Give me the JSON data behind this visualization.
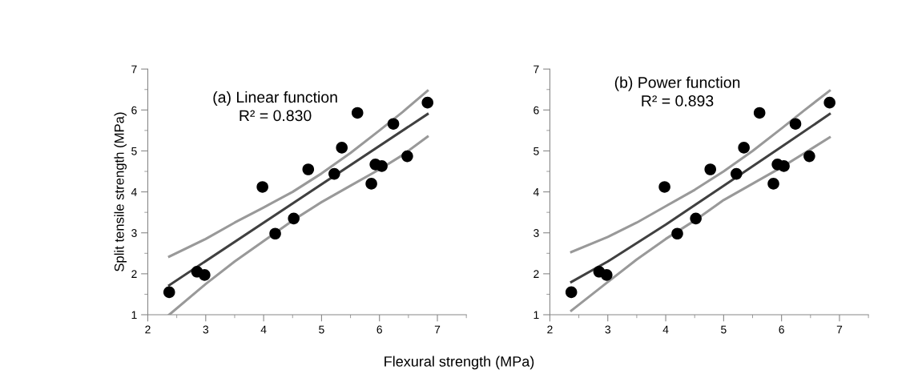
{
  "chart_data": [
    {
      "type": "scatter",
      "ylabel": "Split tensile strength (MPa)",
      "xlabel": "Flexural strength (MPa)",
      "annotations": [
        "(a) Linear function",
        "R² = 0.830"
      ],
      "xlim": [
        2,
        7.5
      ],
      "xticks": [
        2,
        3,
        4,
        5,
        6,
        7
      ],
      "ylim": [
        1,
        7
      ],
      "yticks": [
        1,
        2,
        3,
        4,
        5,
        6,
        7
      ],
      "grid": false,
      "legend": false,
      "series": [
        {
          "type": "line",
          "color": "#999999",
          "x": [
            2.37,
            3,
            3.5,
            4,
            4.5,
            5,
            5.5,
            6,
            6.4,
            6.83
          ],
          "values": [
            2.42,
            2.85,
            3.25,
            3.62,
            4.0,
            4.45,
            4.95,
            5.5,
            5.95,
            6.47
          ]
        },
        {
          "type": "line",
          "color": "#999999",
          "x": [
            2.37,
            3,
            3.5,
            4,
            4.5,
            5,
            5.5,
            6,
            6.4,
            6.83
          ],
          "values": [
            1.0,
            1.75,
            2.3,
            2.8,
            3.3,
            3.75,
            4.15,
            4.55,
            4.9,
            5.35
          ]
        },
        {
          "type": "line",
          "color": "#404040",
          "x": [
            2.37,
            6.83
          ],
          "values": [
            1.72,
            5.9
          ]
        },
        {
          "color": "#000000",
          "marker": "circle",
          "x": [
            2.37,
            2.85,
            2.98,
            3.98,
            4.2,
            4.52,
            4.77,
            5.22,
            5.35,
            5.62,
            5.86,
            5.93,
            6.04,
            6.24,
            6.48,
            6.83
          ],
          "values": [
            1.55,
            2.05,
            1.97,
            4.12,
            2.98,
            3.35,
            4.55,
            4.44,
            5.08,
            5.93,
            4.2,
            4.67,
            4.63,
            5.66,
            4.87,
            6.18
          ]
        }
      ]
    },
    {
      "type": "scatter",
      "annotations": [
        "(b) Power function",
        "R² = 0.893"
      ],
      "xlim": [
        2,
        7.5
      ],
      "xticks": [
        2,
        3,
        4,
        5,
        6,
        7
      ],
      "ylim": [
        1,
        7
      ],
      "yticks": [
        1,
        2,
        3,
        4,
        5,
        6,
        7
      ],
      "grid": false,
      "legend": false,
      "series": [
        {
          "type": "line",
          "color": "#999999",
          "x": [
            2.37,
            3,
            3.5,
            4,
            4.5,
            5,
            5.5,
            6,
            6.4,
            6.83
          ],
          "values": [
            2.53,
            2.9,
            3.25,
            3.65,
            4.05,
            4.5,
            5.0,
            5.55,
            6.0,
            6.47
          ]
        },
        {
          "type": "line",
          "color": "#999999",
          "x": [
            2.37,
            3,
            3.5,
            4,
            4.5,
            5,
            5.5,
            6,
            6.4,
            6.83
          ],
          "values": [
            1.1,
            1.8,
            2.35,
            2.85,
            3.3,
            3.8,
            4.2,
            4.6,
            4.95,
            5.33
          ]
        },
        {
          "type": "line",
          "color": "#404040",
          "x": [
            2.37,
            3,
            4,
            5,
            6,
            6.83
          ],
          "values": [
            1.8,
            2.3,
            3.2,
            4.15,
            5.1,
            5.9
          ]
        },
        {
          "color": "#000000",
          "marker": "circle",
          "x": [
            2.37,
            2.85,
            2.98,
            3.98,
            4.2,
            4.52,
            4.77,
            5.22,
            5.35,
            5.62,
            5.86,
            5.93,
            6.04,
            6.24,
            6.48,
            6.83
          ],
          "values": [
            1.55,
            2.05,
            1.97,
            4.12,
            2.98,
            3.35,
            4.55,
            4.44,
            5.08,
            5.93,
            4.2,
            4.67,
            4.63,
            5.66,
            4.87,
            6.18
          ]
        }
      ]
    }
  ]
}
